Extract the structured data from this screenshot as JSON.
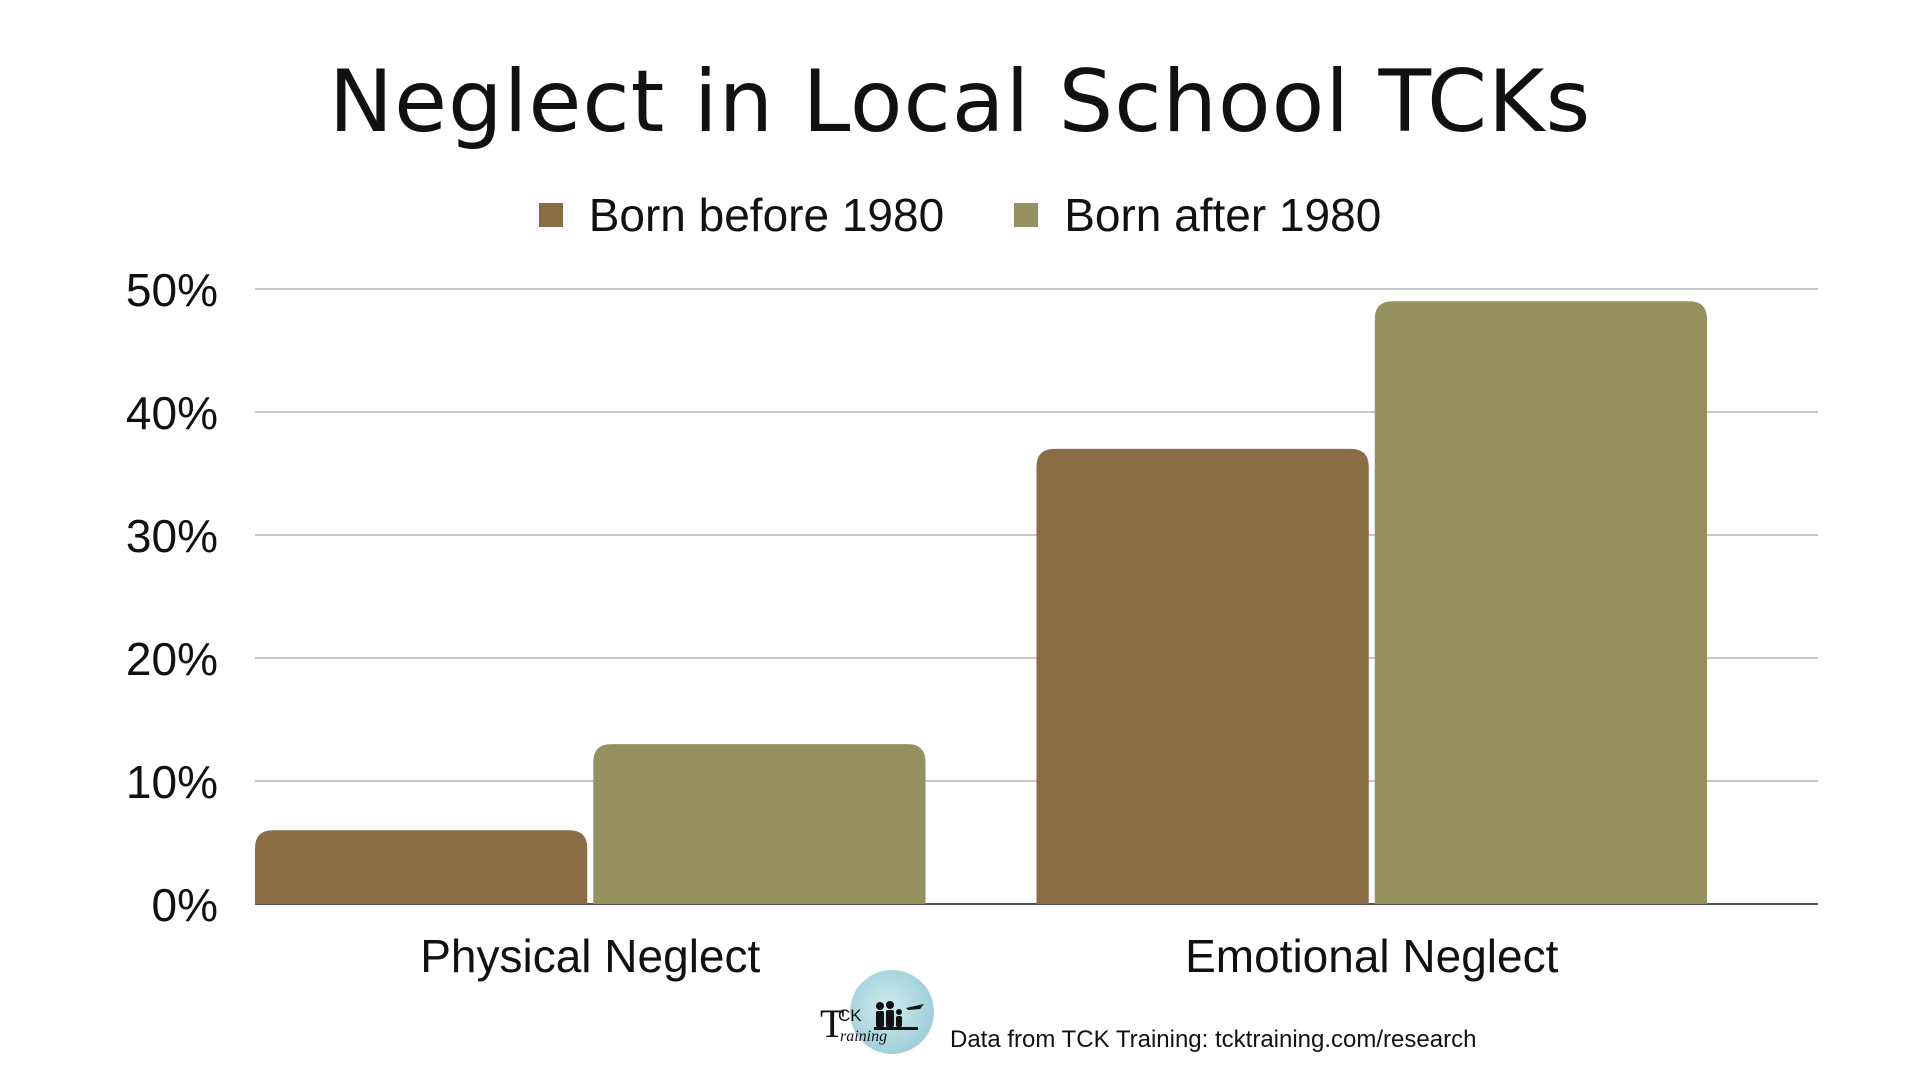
{
  "chart_data": {
    "type": "bar",
    "title": "Neglect in Local School TCKs",
    "categories": [
      "Physical Neglect",
      "Emotional Neglect"
    ],
    "series": [
      {
        "name": "Born before 1980",
        "values": [
          6,
          37
        ],
        "color": "#8a6d45"
      },
      {
        "name": "Born after 1980",
        "values": [
          13,
          49
        ],
        "color": "#979160"
      }
    ],
    "xlabel": "",
    "ylabel": "",
    "ylim": [
      0,
      50
    ],
    "yticks": [
      "0%",
      "10%",
      "20%",
      "30%",
      "40%",
      "50%"
    ],
    "ytick_values": [
      0,
      10,
      20,
      30,
      40,
      50
    ],
    "grid": true,
    "legend_position": "top-center"
  },
  "footer": {
    "logo_t": "T",
    "logo_ck": "CK",
    "logo_raining": "raining",
    "source": "Data from TCK Training: tcktraining.com/research"
  },
  "colors": {
    "grid": "#c8c8c8",
    "axis": "#555555"
  }
}
